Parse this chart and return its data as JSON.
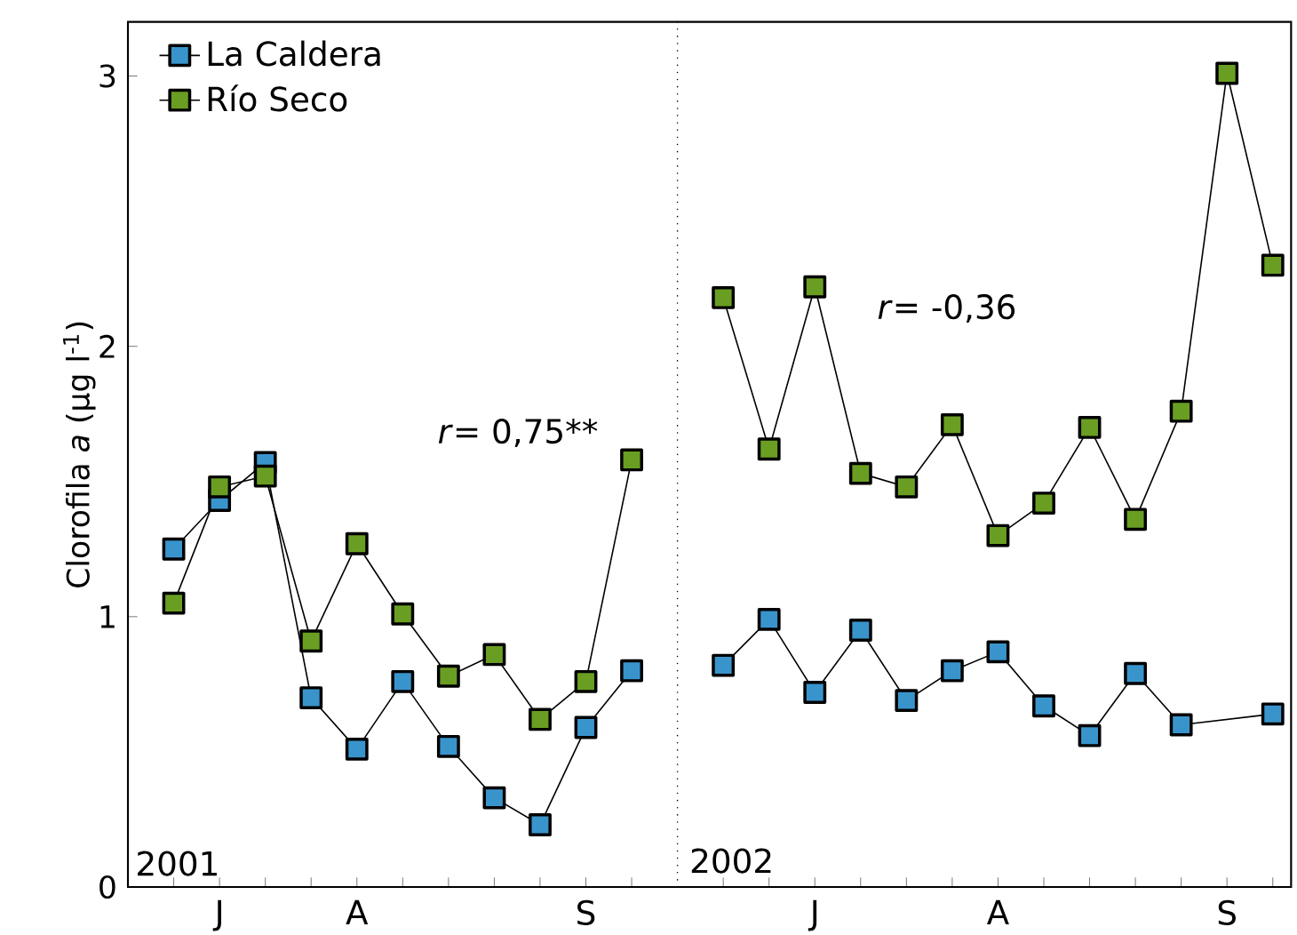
{
  "chart_data": {
    "type": "line",
    "ylabel": "Clorofila *a* (µg l$^{-1}$)",
    "categories": [
      null,
      "J",
      null,
      null,
      "A",
      null,
      null,
      null,
      null,
      "S",
      null,
      null,
      null,
      null,
      "J",
      null,
      null,
      null,
      "A",
      null,
      null,
      null,
      null,
      "S",
      null
    ],
    "series": [
      {
        "name": "La Caldera",
        "color": "#3a94cc",
        "values": [
          1.25,
          1.43,
          1.57,
          0.7,
          0.51,
          0.76,
          0.52,
          0.33,
          0.23,
          0.59,
          0.8,
          null,
          0.82,
          0.99,
          0.72,
          0.95,
          0.69,
          0.8,
          0.87,
          0.67,
          0.56,
          0.79,
          0.6,
          null,
          0.64
        ]
      },
      {
        "name": "Río Seco",
        "color": "#6a9e22",
        "values": [
          1.05,
          1.48,
          1.52,
          0.91,
          1.27,
          1.01,
          0.78,
          0.86,
          0.62,
          0.76,
          1.58,
          null,
          2.18,
          1.62,
          2.22,
          1.53,
          1.48,
          1.71,
          1.3,
          1.42,
          1.7,
          1.36,
          1.76,
          3.01,
          2.3
        ]
      }
    ],
    "ylim": [
      0,
      3.2
    ],
    "yticks": [
      0,
      1,
      2,
      3
    ],
    "annotations": [
      "*r*= 0,75**",
      "*r*= -0,36",
      "2001",
      "2002"
    ],
    "legend": "top left",
    "marker": "square",
    "line_style": "solid",
    "grid": false
  }
}
